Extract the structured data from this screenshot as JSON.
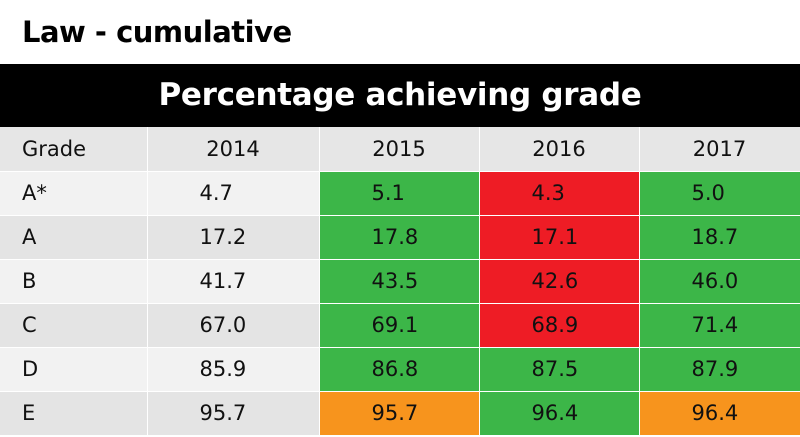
{
  "title": "Law - cumulative",
  "banner": "Percentage achieving grade",
  "colors": {
    "green": "#3cb648",
    "red": "#ee1c25",
    "orange": "#f7941d",
    "banner_bg": "#000000",
    "header_bg": "#e6e6e6"
  },
  "chart_data": {
    "type": "table",
    "title": "Law - cumulative",
    "subtitle": "Percentage achieving grade",
    "columns": [
      "Grade",
      "2014",
      "2015",
      "2016",
      "2017"
    ],
    "rows": [
      {
        "grade": "A*",
        "values": [
          "4.7",
          "5.1",
          "4.3",
          "5.0"
        ],
        "colors": [
          "",
          "green",
          "red",
          "green"
        ]
      },
      {
        "grade": "A",
        "values": [
          "17.2",
          "17.8",
          "17.1",
          "18.7"
        ],
        "colors": [
          "",
          "green",
          "red",
          "green"
        ]
      },
      {
        "grade": "B",
        "values": [
          "41.7",
          "43.5",
          "42.6",
          "46.0"
        ],
        "colors": [
          "",
          "green",
          "red",
          "green"
        ]
      },
      {
        "grade": "C",
        "values": [
          "67.0",
          "69.1",
          "68.9",
          "71.4"
        ],
        "colors": [
          "",
          "green",
          "red",
          "green"
        ]
      },
      {
        "grade": "D",
        "values": [
          "85.9",
          "86.8",
          "87.5",
          "87.9"
        ],
        "colors": [
          "",
          "green",
          "green",
          "green"
        ]
      },
      {
        "grade": "E",
        "values": [
          "95.7",
          "95.7",
          "96.4",
          "96.4"
        ],
        "colors": [
          "",
          "orange",
          "green",
          "orange"
        ]
      }
    ]
  }
}
